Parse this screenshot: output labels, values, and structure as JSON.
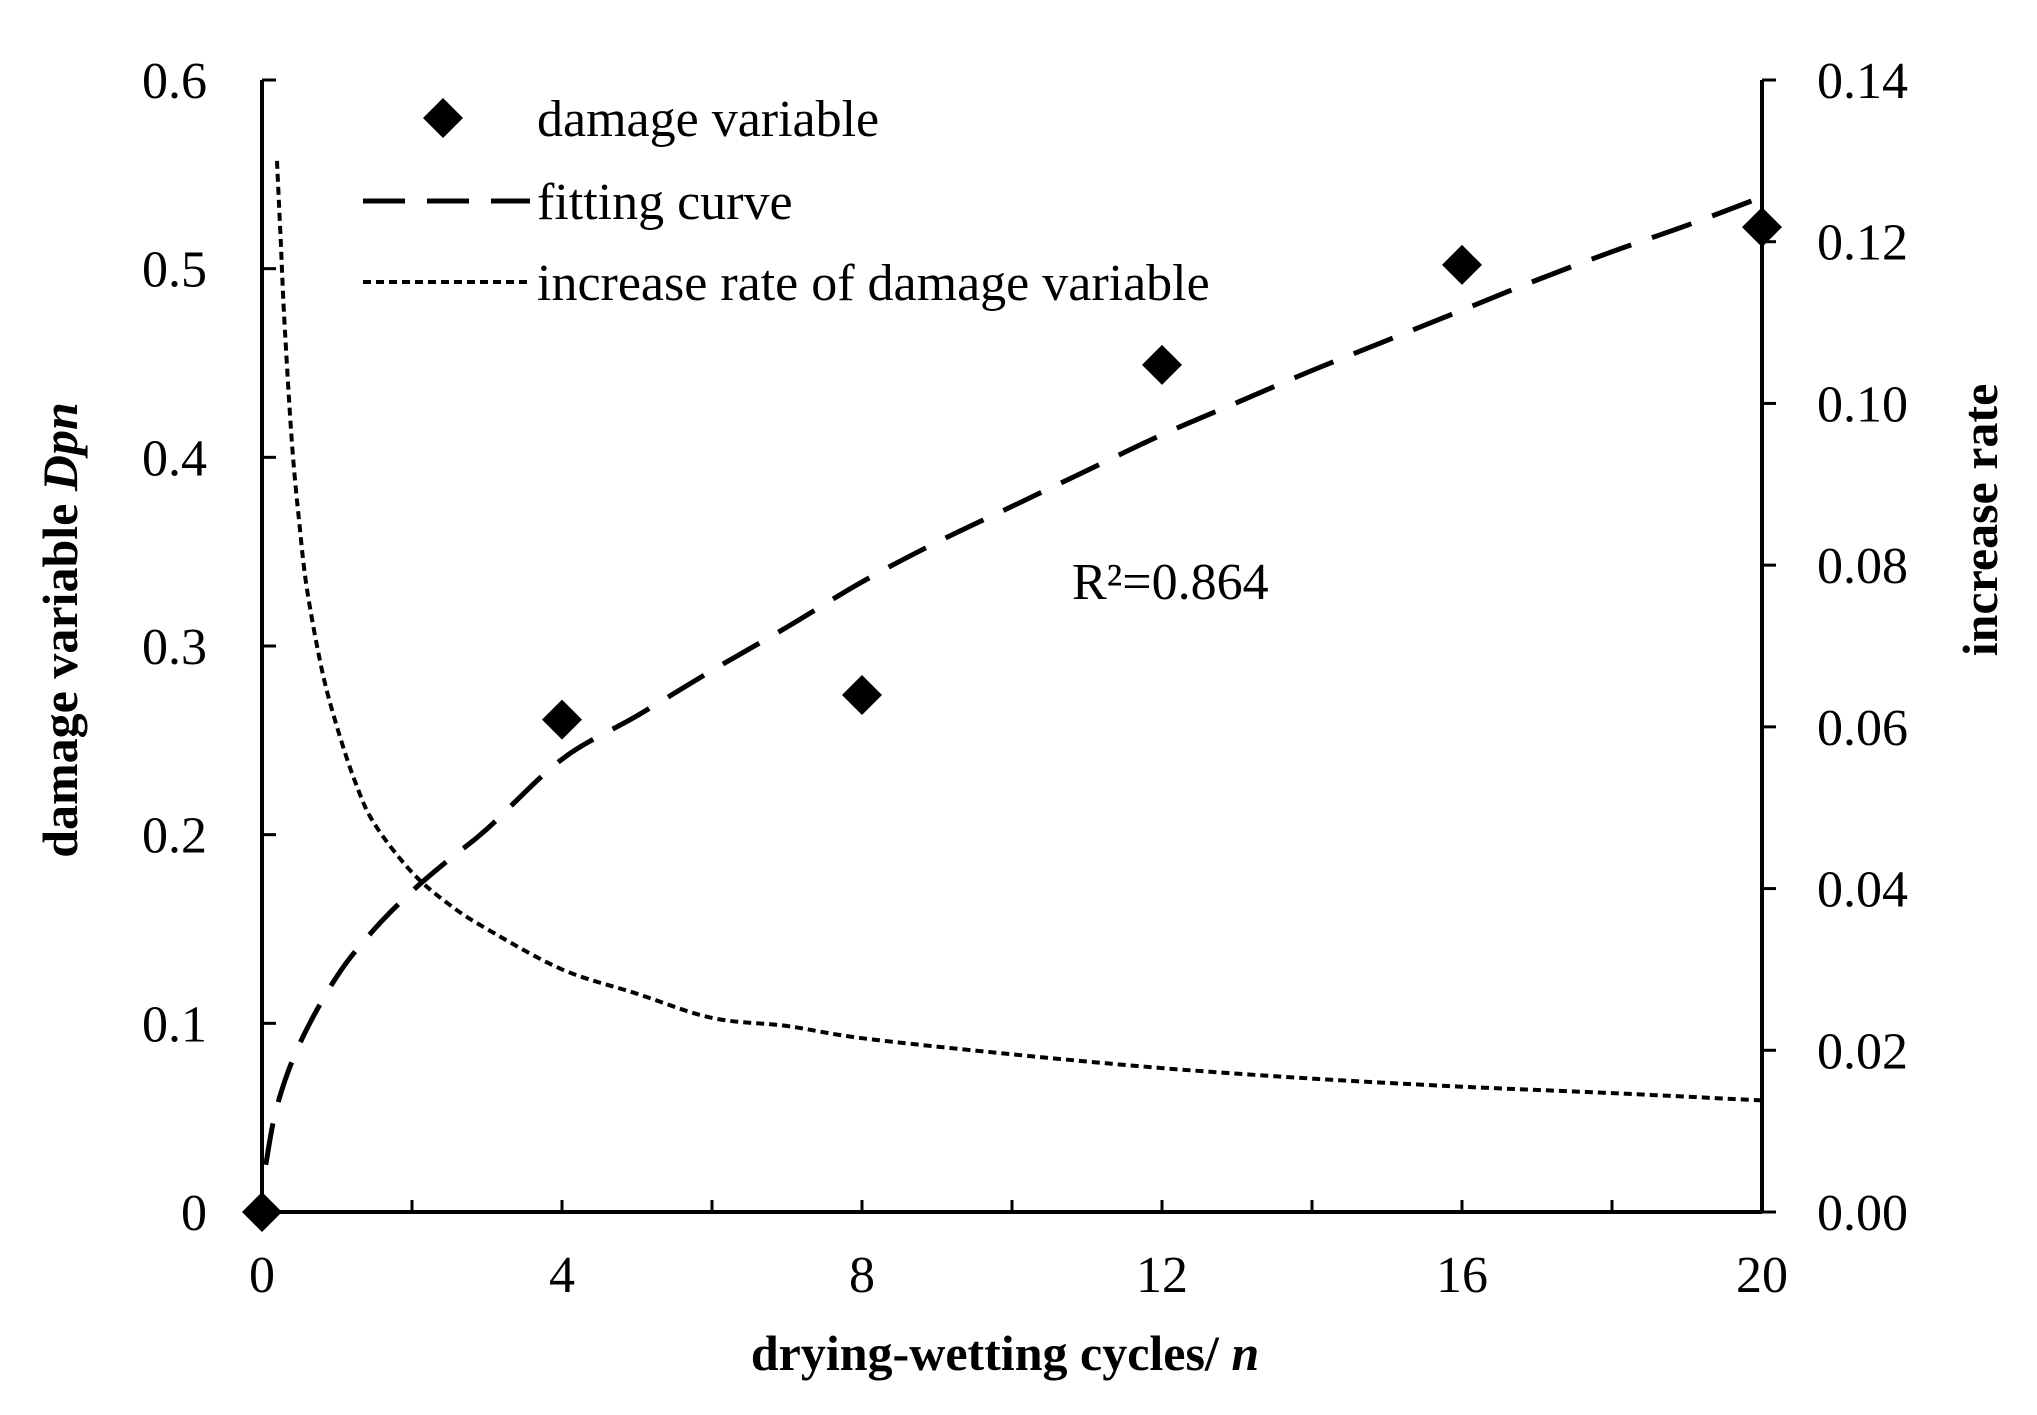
{
  "chart_data": {
    "type": "scatter",
    "title": "",
    "xlabel": "drying-wetting cycles/ ",
    "xlabel_var": "n",
    "ylabel": "damage variable ",
    "ylabel_var": "Dpn",
    "y2label": "increase rate",
    "xlim": [
      0,
      20
    ],
    "ylim": [
      0,
      0.6
    ],
    "y2lim": [
      0,
      0.14
    ],
    "xticks": [
      0,
      4,
      8,
      12,
      16,
      20
    ],
    "xtick_labels": [
      "0",
      "4",
      "8",
      "12",
      "16",
      "20"
    ],
    "yticks": [
      0,
      0.1,
      0.2,
      0.3,
      0.4,
      0.5,
      0.6
    ],
    "ytick_labels": [
      "0",
      "0.1",
      "0.2",
      "0.3",
      "0.4",
      "0.5",
      "0.6"
    ],
    "y2ticks": [
      0,
      0.02,
      0.04,
      0.06,
      0.08,
      0.1,
      0.12,
      0.14
    ],
    "y2tick_labels": [
      "0.00",
      "0.02",
      "0.04",
      "0.06",
      "0.08",
      "0.10",
      "0.12",
      "0.14"
    ],
    "grid": false,
    "legend_position": "top-left",
    "series": [
      {
        "name": "damage variable",
        "kind": "scatter",
        "axis": "left",
        "marker": "diamond",
        "x": [
          0,
          4,
          8,
          12,
          16,
          20
        ],
        "y": [
          0,
          0.261,
          0.274,
          0.449,
          0.502,
          0.522
        ]
      },
      {
        "name": "fitting curve",
        "kind": "line",
        "style": "long-dash",
        "axis": "left",
        "x": [
          0.05,
          0.2,
          0.5,
          1,
          1.5,
          2,
          2.5,
          3,
          4,
          5,
          6,
          7,
          8,
          9,
          10,
          11,
          12,
          13,
          14,
          15,
          16,
          17,
          18,
          19,
          20
        ],
        "y": [
          0.025,
          0.056,
          0.089,
          0.125,
          0.15,
          0.17,
          0.187,
          0.203,
          0.24,
          0.263,
          0.287,
          0.31,
          0.334,
          0.355,
          0.374,
          0.393,
          0.412,
          0.429,
          0.446,
          0.462,
          0.478,
          0.494,
          0.509,
          0.523,
          0.538
        ]
      },
      {
        "name": "increase rate of damage variable",
        "kind": "line",
        "style": "short-dash",
        "axis": "right",
        "x": [
          0.2,
          0.25,
          0.3,
          0.4,
          0.5,
          0.6,
          0.8,
          1,
          1.25,
          1.5,
          2,
          2.5,
          3,
          4,
          5,
          6,
          7,
          8,
          10,
          12,
          14,
          16,
          18,
          20
        ],
        "y": [
          0.13,
          0.12,
          0.11,
          0.095,
          0.085,
          0.077,
          0.067,
          0.06,
          0.053,
          0.048,
          0.042,
          0.038,
          0.035,
          0.03,
          0.027,
          0.024,
          0.023,
          0.0215,
          0.0195,
          0.0178,
          0.0165,
          0.0155,
          0.0147,
          0.0138
        ]
      }
    ],
    "annotations": [
      {
        "text": "R²=0.864",
        "x": 10.8,
        "y": 0.325,
        "axis": "left"
      }
    ]
  }
}
